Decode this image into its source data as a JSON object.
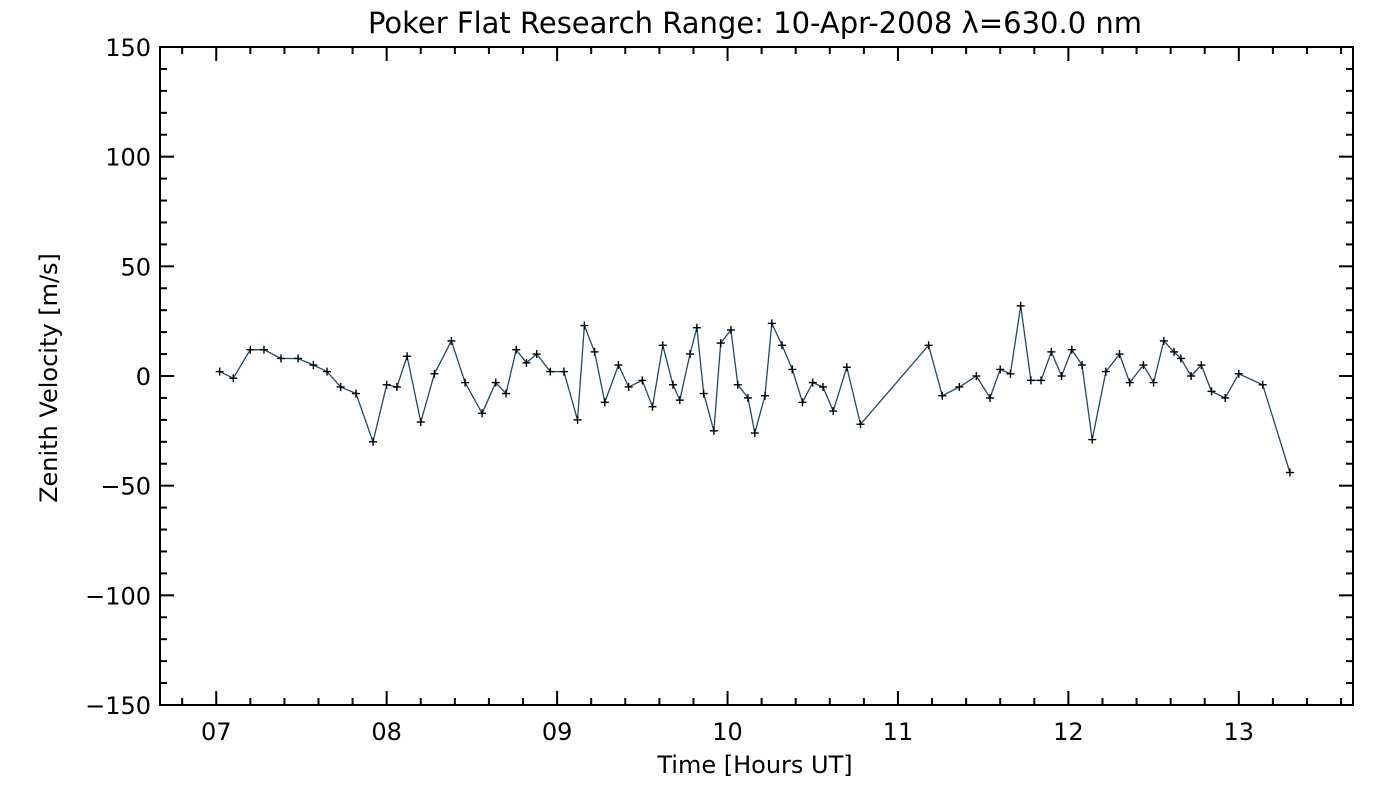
{
  "chart_data": {
    "type": "line",
    "title": "Poker Flat Research Range: 10-Apr-2008 λ=630.0 nm",
    "xlabel": "Time [Hours UT]",
    "ylabel": "Zenith Velocity [m/s]",
    "xlim": [
      6.67,
      13.67
    ],
    "ylim": [
      -150,
      150
    ],
    "x_ticks": [
      7,
      8,
      9,
      10,
      11,
      12,
      13
    ],
    "x_tick_labels": [
      "07",
      "08",
      "09",
      "10",
      "11",
      "12",
      "13"
    ],
    "y_ticks": [
      -150,
      -100,
      -50,
      0,
      50,
      100,
      150
    ],
    "y_tick_labels": [
      "−150",
      "−100",
      "−50",
      "0",
      "50",
      "100",
      "150"
    ],
    "grid": false,
    "line_color": "#1f4a66",
    "marker": "+",
    "series": [
      {
        "x": [
          7.02,
          7.1,
          7.2,
          7.28,
          7.38,
          7.48,
          7.57,
          7.65,
          7.73,
          7.82,
          7.92,
          8.0,
          8.06,
          8.12,
          8.2,
          8.28,
          8.38,
          8.46,
          8.56,
          8.64,
          8.7,
          8.76,
          8.82,
          8.88,
          8.96,
          9.04,
          9.12,
          9.16,
          9.22,
          9.28,
          9.36,
          9.42,
          9.5,
          9.56,
          9.62,
          9.68,
          9.72,
          9.78,
          9.82,
          9.86,
          9.92,
          9.96,
          10.02,
          10.06,
          10.12,
          10.16,
          10.22,
          10.26,
          10.32,
          10.38,
          10.44,
          10.5,
          10.56,
          10.62,
          10.7,
          10.78,
          11.18,
          11.26,
          11.36,
          11.46,
          11.54,
          11.6,
          11.66,
          11.72,
          11.78,
          11.84,
          11.9,
          11.96,
          12.02,
          12.08,
          12.14,
          12.22,
          12.3,
          12.36,
          12.44,
          12.5,
          12.56,
          12.62,
          12.66,
          12.72,
          12.78,
          12.84,
          12.92,
          13.0,
          13.14,
          13.3
        ],
        "y": [
          2,
          -1,
          12,
          12,
          8,
          8,
          5,
          2,
          -5,
          -8,
          -30,
          -4,
          -5,
          9,
          -21,
          1,
          16,
          -3,
          -17,
          -3,
          -8,
          12,
          6,
          10,
          2,
          2,
          -20,
          23,
          11,
          -12,
          5,
          -5,
          -2,
          -14,
          14,
          -4,
          -11,
          10,
          22,
          -8,
          -25,
          15,
          21,
          -4,
          -10,
          -26,
          -9,
          24,
          14,
          3,
          -12,
          -3,
          -5,
          -16,
          4,
          -22,
          14,
          -9,
          -5,
          0,
          -10,
          3,
          1,
          32,
          -2,
          -2,
          11,
          0,
          12,
          5,
          -29,
          2,
          10,
          -3,
          5,
          -3,
          16,
          11,
          8,
          0,
          5,
          -7,
          -10,
          1,
          -4,
          -44
        ]
      }
    ]
  }
}
